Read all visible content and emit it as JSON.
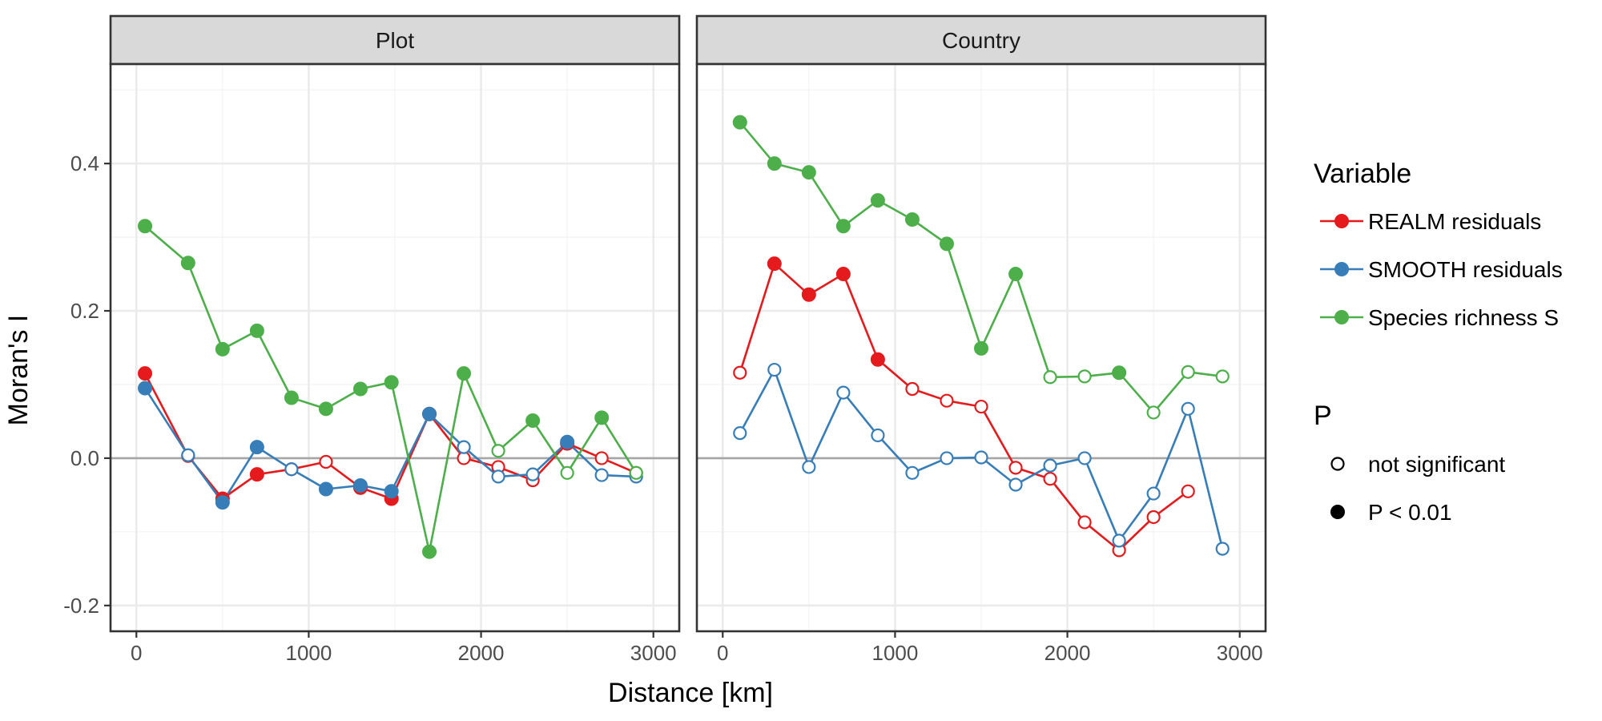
{
  "chart_data": {
    "type": "line",
    "xlabel": "Distance [km]",
    "ylabel": "Moran's I",
    "xlim": [
      -150,
      3150
    ],
    "ylim": [
      -0.235,
      0.535
    ],
    "x_ticks": [
      0,
      1000,
      2000,
      3000
    ],
    "x_tick_labels": [
      "0",
      "1000",
      "2000",
      "3000"
    ],
    "y_ticks": [
      -0.2,
      0.0,
      0.2,
      0.4
    ],
    "y_tick_labels": [
      "-0.2",
      "0.0",
      "0.2",
      "0.4"
    ],
    "grid": true,
    "reference_line_y": 0,
    "legend": {
      "position": "right",
      "variable_title": "Variable",
      "variable_entries": [
        {
          "label": "REALM residuals",
          "color": "#e41a1c"
        },
        {
          "label": "SMOOTH residuals",
          "color": "#377eb8"
        },
        {
          "label": "Species richness S",
          "color": "#4daf4a"
        }
      ],
      "p_title": "P",
      "p_entries": [
        {
          "label": "not significant",
          "filled": false
        },
        {
          "label": "P < 0.01",
          "filled": true
        }
      ]
    },
    "panels": [
      {
        "title": "Plot",
        "series": [
          {
            "name": "REALM residuals",
            "color": "#e41a1c",
            "x": [
              50,
              300,
              500,
              700,
              900,
              1100,
              1300,
              1480,
              1700,
              1900,
              2100,
              2300,
              2500,
              2700,
              2900
            ],
            "y": [
              0.115,
              0.003,
              -0.055,
              -0.022,
              -0.015,
              -0.005,
              -0.04,
              -0.055,
              0.06,
              0.0,
              -0.012,
              -0.03,
              0.02,
              0.0,
              -0.02
            ],
            "significant": [
              true,
              false,
              true,
              true,
              false,
              false,
              true,
              true,
              true,
              false,
              false,
              false,
              true,
              false,
              false
            ]
          },
          {
            "name": "SMOOTH residuals",
            "color": "#377eb8",
            "x": [
              50,
              300,
              500,
              700,
              900,
              1100,
              1300,
              1480,
              1700,
              1900,
              2100,
              2300,
              2500,
              2700,
              2900
            ],
            "y": [
              0.095,
              0.004,
              -0.06,
              0.015,
              -0.015,
              -0.042,
              -0.037,
              -0.045,
              0.06,
              0.015,
              -0.025,
              -0.022,
              0.022,
              -0.023,
              -0.025
            ],
            "significant": [
              true,
              false,
              true,
              true,
              false,
              true,
              true,
              true,
              true,
              false,
              false,
              false,
              true,
              false,
              false
            ]
          },
          {
            "name": "Species richness S",
            "color": "#4daf4a",
            "x": [
              50,
              300,
              500,
              700,
              900,
              1100,
              1300,
              1480,
              1700,
              1900,
              2100,
              2300,
              2500,
              2700,
              2900
            ],
            "y": [
              0.315,
              0.265,
              0.148,
              0.173,
              0.082,
              0.067,
              0.094,
              0.103,
              -0.127,
              0.115,
              0.01,
              0.051,
              -0.02,
              0.055,
              -0.02
            ],
            "significant": [
              true,
              true,
              true,
              true,
              true,
              true,
              true,
              true,
              true,
              true,
              false,
              true,
              false,
              true,
              false
            ]
          }
        ]
      },
      {
        "title": "Country",
        "series": [
          {
            "name": "REALM residuals",
            "color": "#e41a1c",
            "x": [
              100,
              300,
              500,
              700,
              900,
              1100,
              1300,
              1500,
              1700,
              1900,
              2100,
              2300,
              2500,
              2700
            ],
            "y": [
              0.116,
              0.264,
              0.222,
              0.25,
              0.134,
              0.094,
              0.078,
              0.07,
              -0.013,
              -0.028,
              -0.087,
              -0.125,
              -0.08,
              -0.045
            ],
            "significant": [
              false,
              true,
              true,
              true,
              true,
              false,
              false,
              false,
              false,
              false,
              false,
              false,
              false,
              false
            ]
          },
          {
            "name": "SMOOTH residuals",
            "color": "#377eb8",
            "x": [
              100,
              300,
              500,
              700,
              900,
              1100,
              1300,
              1500,
              1700,
              1900,
              2100,
              2300,
              2500,
              2700,
              2900
            ],
            "y": [
              0.034,
              0.12,
              -0.012,
              0.089,
              0.031,
              -0.02,
              0.0,
              0.001,
              -0.036,
              -0.01,
              0.0,
              -0.112,
              -0.048,
              0.067,
              -0.123
            ],
            "significant": [
              false,
              false,
              false,
              false,
              false,
              false,
              false,
              false,
              false,
              false,
              false,
              false,
              false,
              false,
              false
            ]
          },
          {
            "name": "Species richness S",
            "color": "#4daf4a",
            "x": [
              100,
              300,
              500,
              700,
              900,
              1100,
              1300,
              1500,
              1700,
              1900,
              2100,
              2300,
              2500,
              2700,
              2900
            ],
            "y": [
              0.456,
              0.4,
              0.388,
              0.315,
              0.35,
              0.324,
              0.291,
              0.149,
              0.25,
              0.11,
              0.111,
              0.116,
              0.062,
              0.117,
              0.111
            ],
            "significant": [
              true,
              true,
              true,
              true,
              true,
              true,
              true,
              true,
              true,
              false,
              false,
              true,
              false,
              false,
              false
            ]
          }
        ]
      }
    ]
  }
}
